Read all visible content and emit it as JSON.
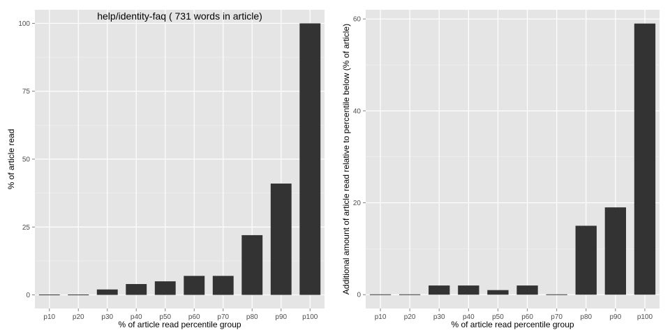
{
  "colors": {
    "panel_bg": "#e5e5e5",
    "grid_major": "#ffffff",
    "grid_minor": "#f2f2f2",
    "bar": "#333333",
    "tick_text": "#4d4d4d"
  },
  "chart_data": [
    {
      "type": "bar",
      "title": "help/identity-faq ( 731 words in article)",
      "xlabel": "% of article read percentile group",
      "ylabel": "% of article read",
      "categories": [
        "p10",
        "p20",
        "p30",
        "p40",
        "p50",
        "p60",
        "p70",
        "p80",
        "p90",
        "p100"
      ],
      "values": [
        0,
        0,
        2,
        4,
        5,
        7,
        7,
        22,
        41,
        100
      ],
      "ylim": [
        -5,
        105
      ],
      "yticks": [
        0,
        25,
        50,
        75,
        100
      ],
      "grid": true
    },
    {
      "type": "bar",
      "title": "",
      "xlabel": "% of article read percentile group",
      "ylabel": "Additional amount of article read relative to percentile below (% of article)",
      "categories": [
        "p10",
        "p20",
        "p30",
        "p40",
        "p50",
        "p60",
        "p70",
        "p80",
        "p90",
        "p100"
      ],
      "values": [
        0,
        0,
        2,
        2,
        1,
        2,
        0,
        15,
        19,
        59
      ],
      "ylim": [
        -3,
        62
      ],
      "yticks": [
        0,
        20,
        40,
        60
      ],
      "grid": true
    }
  ]
}
